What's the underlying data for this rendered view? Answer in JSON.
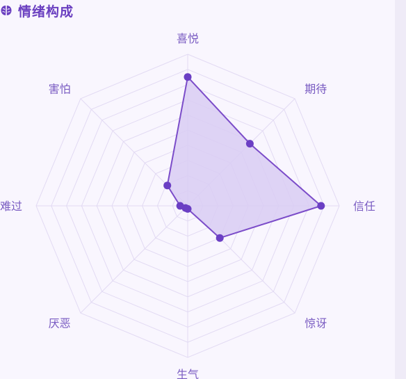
{
  "section": {
    "title": "情绪构成",
    "icon": "brain-icon"
  },
  "colors": {
    "accent": "#6a3fc0",
    "grid": "#e2daf3",
    "fill": "#d9ccf3",
    "stroke": "#7b4cc9",
    "point": "#6b3fc4"
  },
  "chart_data": {
    "type": "radar",
    "axes": [
      "喜悦",
      "期待",
      "信任",
      "惊讶",
      "生气",
      "厌恶",
      "难过",
      "害怕"
    ],
    "values": [
      85,
      58,
      88,
      30,
      2,
      2,
      5,
      19
    ],
    "range": [
      0,
      100
    ],
    "grid_rings": 10,
    "legend": "none"
  }
}
